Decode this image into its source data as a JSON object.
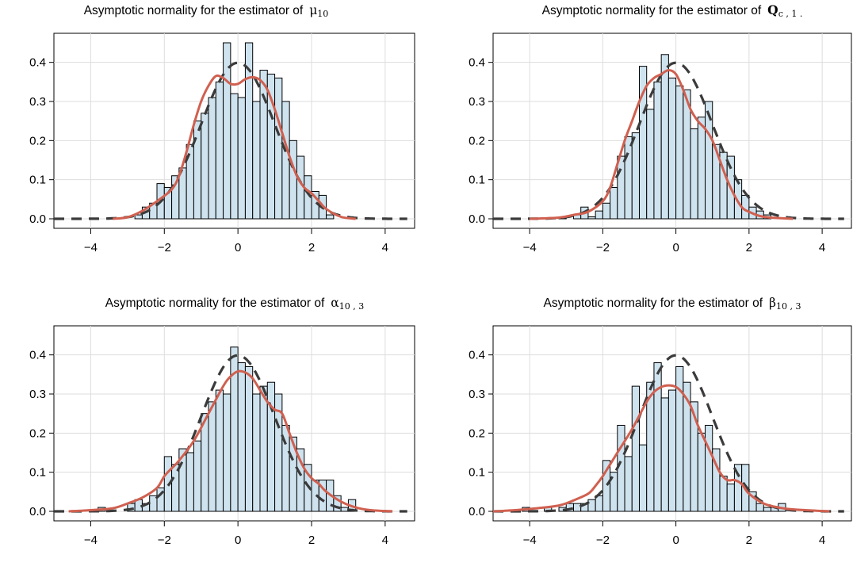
{
  "colors": {
    "bar_fill": "#cfe3ef",
    "bar_stroke": "#000000",
    "kde_line": "#d06050",
    "normal_line": "#3b3b3b",
    "grid": "#dddddd"
  },
  "chart_data": [
    {
      "type": "bar",
      "title": "Asymptotic normality for the estimator of",
      "symbol_main": "μ",
      "symbol_sub": "10",
      "symbol_bold": false,
      "xlim": [
        -5,
        4.8
      ],
      "ylim": [
        0,
        0.45
      ],
      "xticks": [
        -4,
        -2,
        0,
        2,
        4
      ],
      "xtick_labels": [
        "−4",
        "−2",
        "0",
        "2",
        "4"
      ],
      "yticks": [
        0.0,
        0.1,
        0.2,
        0.3,
        0.4
      ],
      "ytick_labels": [
        "0.0",
        "0.1",
        "0.2",
        "0.3",
        "0.4"
      ],
      "grid": true,
      "bin_width": 0.2,
      "bins": [
        {
          "x": -2.8,
          "y": 0.01
        },
        {
          "x": -2.6,
          "y": 0.03
        },
        {
          "x": -2.4,
          "y": 0.04
        },
        {
          "x": -2.2,
          "y": 0.09
        },
        {
          "x": -2.0,
          "y": 0.08
        },
        {
          "x": -1.8,
          "y": 0.11
        },
        {
          "x": -1.6,
          "y": 0.13
        },
        {
          "x": -1.4,
          "y": 0.19
        },
        {
          "x": -1.2,
          "y": 0.25
        },
        {
          "x": -1.0,
          "y": 0.27
        },
        {
          "x": -0.8,
          "y": 0.31
        },
        {
          "x": -0.6,
          "y": 0.35
        },
        {
          "x": -0.4,
          "y": 0.45
        },
        {
          "x": -0.2,
          "y": 0.32
        },
        {
          "x": 0.0,
          "y": 0.31
        },
        {
          "x": 0.2,
          "y": 0.45
        },
        {
          "x": 0.4,
          "y": 0.3
        },
        {
          "x": 0.6,
          "y": 0.38
        },
        {
          "x": 0.8,
          "y": 0.37
        },
        {
          "x": 1.0,
          "y": 0.36
        },
        {
          "x": 1.2,
          "y": 0.3
        },
        {
          "x": 1.4,
          "y": 0.2
        },
        {
          "x": 1.6,
          "y": 0.16
        },
        {
          "x": 1.8,
          "y": 0.11
        },
        {
          "x": 2.0,
          "y": 0.07
        },
        {
          "x": 2.2,
          "y": 0.06
        },
        {
          "x": 2.4,
          "y": 0.01
        }
      ],
      "kde": [
        {
          "x": -3.4,
          "y": 0.0
        },
        {
          "x": -3.0,
          "y": 0.004
        },
        {
          "x": -2.6,
          "y": 0.02
        },
        {
          "x": -2.2,
          "y": 0.045
        },
        {
          "x": -1.8,
          "y": 0.075
        },
        {
          "x": -1.6,
          "y": 0.11
        },
        {
          "x": -1.4,
          "y": 0.17
        },
        {
          "x": -1.2,
          "y": 0.24
        },
        {
          "x": -1.0,
          "y": 0.3
        },
        {
          "x": -0.8,
          "y": 0.34
        },
        {
          "x": -0.6,
          "y": 0.365
        },
        {
          "x": -0.4,
          "y": 0.36
        },
        {
          "x": -0.2,
          "y": 0.345
        },
        {
          "x": 0.0,
          "y": 0.345
        },
        {
          "x": 0.2,
          "y": 0.357
        },
        {
          "x": 0.4,
          "y": 0.362
        },
        {
          "x": 0.6,
          "y": 0.355
        },
        {
          "x": 0.8,
          "y": 0.33
        },
        {
          "x": 1.0,
          "y": 0.28
        },
        {
          "x": 1.2,
          "y": 0.22
        },
        {
          "x": 1.4,
          "y": 0.16
        },
        {
          "x": 1.6,
          "y": 0.11
        },
        {
          "x": 1.8,
          "y": 0.08
        },
        {
          "x": 2.0,
          "y": 0.065
        },
        {
          "x": 2.2,
          "y": 0.045
        },
        {
          "x": 2.4,
          "y": 0.025
        },
        {
          "x": 2.8,
          "y": 0.005
        },
        {
          "x": 3.2,
          "y": 0.0
        }
      ],
      "normal_range": [
        -5,
        4.6
      ]
    },
    {
      "type": "bar",
      "title": "Asymptotic normality for the estimator of",
      "symbol_main": "Q",
      "symbol_sub": "c , 1 .",
      "symbol_bold": true,
      "xlim": [
        -5,
        4.8
      ],
      "ylim": [
        0,
        0.45
      ],
      "xticks": [
        -4,
        -2,
        0,
        2,
        4
      ],
      "xtick_labels": [
        "−4",
        "−2",
        "0",
        "2",
        "4"
      ],
      "yticks": [
        0.0,
        0.1,
        0.2,
        0.3,
        0.4
      ],
      "ytick_labels": [
        "0.0",
        "0.1",
        "0.2",
        "0.3",
        "0.4"
      ],
      "grid": true,
      "bin_width": 0.2,
      "bins": [
        {
          "x": -3.2,
          "y": 0.005
        },
        {
          "x": -2.8,
          "y": 0.01
        },
        {
          "x": -2.6,
          "y": 0.03
        },
        {
          "x": -2.4,
          "y": 0.005
        },
        {
          "x": -2.2,
          "y": 0.02
        },
        {
          "x": -2.0,
          "y": 0.04
        },
        {
          "x": -1.8,
          "y": 0.08
        },
        {
          "x": -1.6,
          "y": 0.16
        },
        {
          "x": -1.4,
          "y": 0.21
        },
        {
          "x": -1.2,
          "y": 0.22
        },
        {
          "x": -1.0,
          "y": 0.39
        },
        {
          "x": -0.8,
          "y": 0.28
        },
        {
          "x": -0.6,
          "y": 0.35
        },
        {
          "x": -0.4,
          "y": 0.42
        },
        {
          "x": -0.2,
          "y": 0.36
        },
        {
          "x": 0.0,
          "y": 0.34
        },
        {
          "x": 0.2,
          "y": 0.33
        },
        {
          "x": 0.4,
          "y": 0.23
        },
        {
          "x": 0.6,
          "y": 0.26
        },
        {
          "x": 0.8,
          "y": 0.3
        },
        {
          "x": 1.0,
          "y": 0.19
        },
        {
          "x": 1.2,
          "y": 0.17
        },
        {
          "x": 1.4,
          "y": 0.16
        },
        {
          "x": 1.6,
          "y": 0.1
        },
        {
          "x": 1.8,
          "y": 0.06
        },
        {
          "x": 2.0,
          "y": 0.03
        },
        {
          "x": 2.2,
          "y": 0.02
        },
        {
          "x": 2.4,
          "y": 0.01
        }
      ],
      "kde": [
        {
          "x": -4.0,
          "y": 0.0
        },
        {
          "x": -3.2,
          "y": 0.003
        },
        {
          "x": -2.8,
          "y": 0.01
        },
        {
          "x": -2.4,
          "y": 0.018
        },
        {
          "x": -2.0,
          "y": 0.045
        },
        {
          "x": -1.8,
          "y": 0.08
        },
        {
          "x": -1.6,
          "y": 0.14
        },
        {
          "x": -1.4,
          "y": 0.2
        },
        {
          "x": -1.2,
          "y": 0.25
        },
        {
          "x": -1.0,
          "y": 0.3
        },
        {
          "x": -0.8,
          "y": 0.34
        },
        {
          "x": -0.6,
          "y": 0.36
        },
        {
          "x": -0.4,
          "y": 0.37
        },
        {
          "x": -0.2,
          "y": 0.38
        },
        {
          "x": 0.0,
          "y": 0.37
        },
        {
          "x": 0.2,
          "y": 0.33
        },
        {
          "x": 0.4,
          "y": 0.28
        },
        {
          "x": 0.6,
          "y": 0.25
        },
        {
          "x": 0.8,
          "y": 0.23
        },
        {
          "x": 1.0,
          "y": 0.2
        },
        {
          "x": 1.2,
          "y": 0.15
        },
        {
          "x": 1.4,
          "y": 0.1
        },
        {
          "x": 1.6,
          "y": 0.06
        },
        {
          "x": 1.8,
          "y": 0.03
        },
        {
          "x": 2.0,
          "y": 0.018
        },
        {
          "x": 2.4,
          "y": 0.005
        },
        {
          "x": 3.2,
          "y": 0.0
        }
      ],
      "normal_range": [
        -5,
        4.6
      ]
    },
    {
      "type": "bar",
      "title": "Asymptotic normality for the estimator of",
      "symbol_main": "α",
      "symbol_sub": "10 , 3",
      "symbol_bold": false,
      "xlim": [
        -5,
        4.8
      ],
      "ylim": [
        0,
        0.45
      ],
      "xticks": [
        -4,
        -2,
        0,
        2,
        4
      ],
      "xtick_labels": [
        "−4",
        "−2",
        "0",
        "2",
        "4"
      ],
      "yticks": [
        0.0,
        0.1,
        0.2,
        0.3,
        0.4
      ],
      "ytick_labels": [
        "0.0",
        "0.1",
        "0.2",
        "0.3",
        "0.4"
      ],
      "grid": true,
      "bin_width": 0.2,
      "bins": [
        {
          "x": -3.8,
          "y": 0.01
        },
        {
          "x": -3.0,
          "y": 0.02
        },
        {
          "x": -2.8,
          "y": 0.03
        },
        {
          "x": -2.6,
          "y": 0.02
        },
        {
          "x": -2.4,
          "y": 0.04
        },
        {
          "x": -2.2,
          "y": 0.06
        },
        {
          "x": -2.0,
          "y": 0.14
        },
        {
          "x": -1.8,
          "y": 0.12
        },
        {
          "x": -1.6,
          "y": 0.16
        },
        {
          "x": -1.4,
          "y": 0.15
        },
        {
          "x": -1.2,
          "y": 0.18
        },
        {
          "x": -1.0,
          "y": 0.25
        },
        {
          "x": -0.8,
          "y": 0.28
        },
        {
          "x": -0.6,
          "y": 0.31
        },
        {
          "x": -0.4,
          "y": 0.3
        },
        {
          "x": -0.2,
          "y": 0.42
        },
        {
          "x": 0.0,
          "y": 0.38
        },
        {
          "x": 0.2,
          "y": 0.37
        },
        {
          "x": 0.4,
          "y": 0.3
        },
        {
          "x": 0.6,
          "y": 0.32
        },
        {
          "x": 0.8,
          "y": 0.33
        },
        {
          "x": 1.0,
          "y": 0.3
        },
        {
          "x": 1.2,
          "y": 0.22
        },
        {
          "x": 1.4,
          "y": 0.19
        },
        {
          "x": 1.6,
          "y": 0.16
        },
        {
          "x": 1.8,
          "y": 0.12
        },
        {
          "x": 2.0,
          "y": 0.08
        },
        {
          "x": 2.2,
          "y": 0.08
        },
        {
          "x": 2.4,
          "y": 0.08
        },
        {
          "x": 2.6,
          "y": 0.04
        },
        {
          "x": 2.8,
          "y": 0.01
        },
        {
          "x": 3.0,
          "y": 0.03
        }
      ],
      "kde": [
        {
          "x": -4.6,
          "y": 0.0
        },
        {
          "x": -4.0,
          "y": 0.003
        },
        {
          "x": -3.4,
          "y": 0.008
        },
        {
          "x": -3.0,
          "y": 0.02
        },
        {
          "x": -2.6,
          "y": 0.035
        },
        {
          "x": -2.2,
          "y": 0.06
        },
        {
          "x": -2.0,
          "y": 0.09
        },
        {
          "x": -1.8,
          "y": 0.11
        },
        {
          "x": -1.6,
          "y": 0.13
        },
        {
          "x": -1.2,
          "y": 0.18
        },
        {
          "x": -0.8,
          "y": 0.25
        },
        {
          "x": -0.4,
          "y": 0.32
        },
        {
          "x": -0.2,
          "y": 0.345
        },
        {
          "x": 0.0,
          "y": 0.358
        },
        {
          "x": 0.2,
          "y": 0.355
        },
        {
          "x": 0.4,
          "y": 0.34
        },
        {
          "x": 0.6,
          "y": 0.31
        },
        {
          "x": 0.8,
          "y": 0.28
        },
        {
          "x": 1.0,
          "y": 0.26
        },
        {
          "x": 1.2,
          "y": 0.25
        },
        {
          "x": 1.4,
          "y": 0.2
        },
        {
          "x": 1.6,
          "y": 0.15
        },
        {
          "x": 1.8,
          "y": 0.11
        },
        {
          "x": 2.0,
          "y": 0.085
        },
        {
          "x": 2.2,
          "y": 0.07
        },
        {
          "x": 2.4,
          "y": 0.05
        },
        {
          "x": 2.8,
          "y": 0.025
        },
        {
          "x": 3.2,
          "y": 0.01
        },
        {
          "x": 3.6,
          "y": 0.003
        },
        {
          "x": 4.2,
          "y": 0.0
        }
      ],
      "normal_range": [
        -5,
        4.6
      ]
    },
    {
      "type": "bar",
      "title": "Asymptotic normality for the estimator of",
      "symbol_main": "β",
      "symbol_sub": "10 , 3",
      "symbol_bold": false,
      "xlim": [
        -5,
        4.8
      ],
      "ylim": [
        0,
        0.45
      ],
      "xticks": [
        -4,
        -2,
        0,
        2,
        4
      ],
      "xtick_labels": [
        "−4",
        "−2",
        "0",
        "2",
        "4"
      ],
      "yticks": [
        0.0,
        0.1,
        0.2,
        0.3,
        0.4
      ],
      "ytick_labels": [
        "0.0",
        "0.1",
        "0.2",
        "0.3",
        "0.4"
      ],
      "grid": true,
      "bin_width": 0.2,
      "bins": [
        {
          "x": -4.2,
          "y": 0.01
        },
        {
          "x": -3.6,
          "y": 0.01
        },
        {
          "x": -3.2,
          "y": 0.01
        },
        {
          "x": -3.0,
          "y": 0.02
        },
        {
          "x": -2.8,
          "y": 0.02
        },
        {
          "x": -2.6,
          "y": 0.02
        },
        {
          "x": -2.4,
          "y": 0.03
        },
        {
          "x": -2.2,
          "y": 0.04
        },
        {
          "x": -2.0,
          "y": 0.13
        },
        {
          "x": -1.8,
          "y": 0.1
        },
        {
          "x": -1.6,
          "y": 0.22
        },
        {
          "x": -1.4,
          "y": 0.14
        },
        {
          "x": -1.2,
          "y": 0.32
        },
        {
          "x": -1.0,
          "y": 0.17
        },
        {
          "x": -0.8,
          "y": 0.33
        },
        {
          "x": -0.6,
          "y": 0.38
        },
        {
          "x": -0.4,
          "y": 0.29
        },
        {
          "x": -0.2,
          "y": 0.31
        },
        {
          "x": 0.0,
          "y": 0.37
        },
        {
          "x": 0.2,
          "y": 0.33
        },
        {
          "x": 0.4,
          "y": 0.28
        },
        {
          "x": 0.6,
          "y": 0.2
        },
        {
          "x": 0.8,
          "y": 0.22
        },
        {
          "x": 1.0,
          "y": 0.16
        },
        {
          "x": 1.2,
          "y": 0.09
        },
        {
          "x": 1.4,
          "y": 0.07
        },
        {
          "x": 1.6,
          "y": 0.12
        },
        {
          "x": 1.8,
          "y": 0.12
        },
        {
          "x": 2.0,
          "y": 0.05
        },
        {
          "x": 2.2,
          "y": 0.02
        },
        {
          "x": 2.4,
          "y": 0.01
        },
        {
          "x": 2.6,
          "y": 0.01
        },
        {
          "x": 2.8,
          "y": 0.02
        }
      ],
      "kde": [
        {
          "x": -5.0,
          "y": 0.0
        },
        {
          "x": -4.4,
          "y": 0.003
        },
        {
          "x": -3.8,
          "y": 0.008
        },
        {
          "x": -3.2,
          "y": 0.015
        },
        {
          "x": -2.8,
          "y": 0.028
        },
        {
          "x": -2.4,
          "y": 0.045
        },
        {
          "x": -2.2,
          "y": 0.065
        },
        {
          "x": -2.0,
          "y": 0.09
        },
        {
          "x": -1.8,
          "y": 0.12
        },
        {
          "x": -1.6,
          "y": 0.15
        },
        {
          "x": -1.2,
          "y": 0.21
        },
        {
          "x": -0.8,
          "y": 0.28
        },
        {
          "x": -0.6,
          "y": 0.305
        },
        {
          "x": -0.4,
          "y": 0.318
        },
        {
          "x": -0.2,
          "y": 0.322
        },
        {
          "x": 0.0,
          "y": 0.318
        },
        {
          "x": 0.2,
          "y": 0.3
        },
        {
          "x": 0.4,
          "y": 0.27
        },
        {
          "x": 0.6,
          "y": 0.22
        },
        {
          "x": 0.8,
          "y": 0.18
        },
        {
          "x": 1.0,
          "y": 0.14
        },
        {
          "x": 1.2,
          "y": 0.1
        },
        {
          "x": 1.4,
          "y": 0.08
        },
        {
          "x": 1.6,
          "y": 0.08
        },
        {
          "x": 1.8,
          "y": 0.07
        },
        {
          "x": 2.0,
          "y": 0.045
        },
        {
          "x": 2.4,
          "y": 0.02
        },
        {
          "x": 2.8,
          "y": 0.01
        },
        {
          "x": 3.2,
          "y": 0.005
        },
        {
          "x": 4.2,
          "y": 0.0
        }
      ],
      "normal_range": [
        -5,
        4.6
      ]
    }
  ]
}
